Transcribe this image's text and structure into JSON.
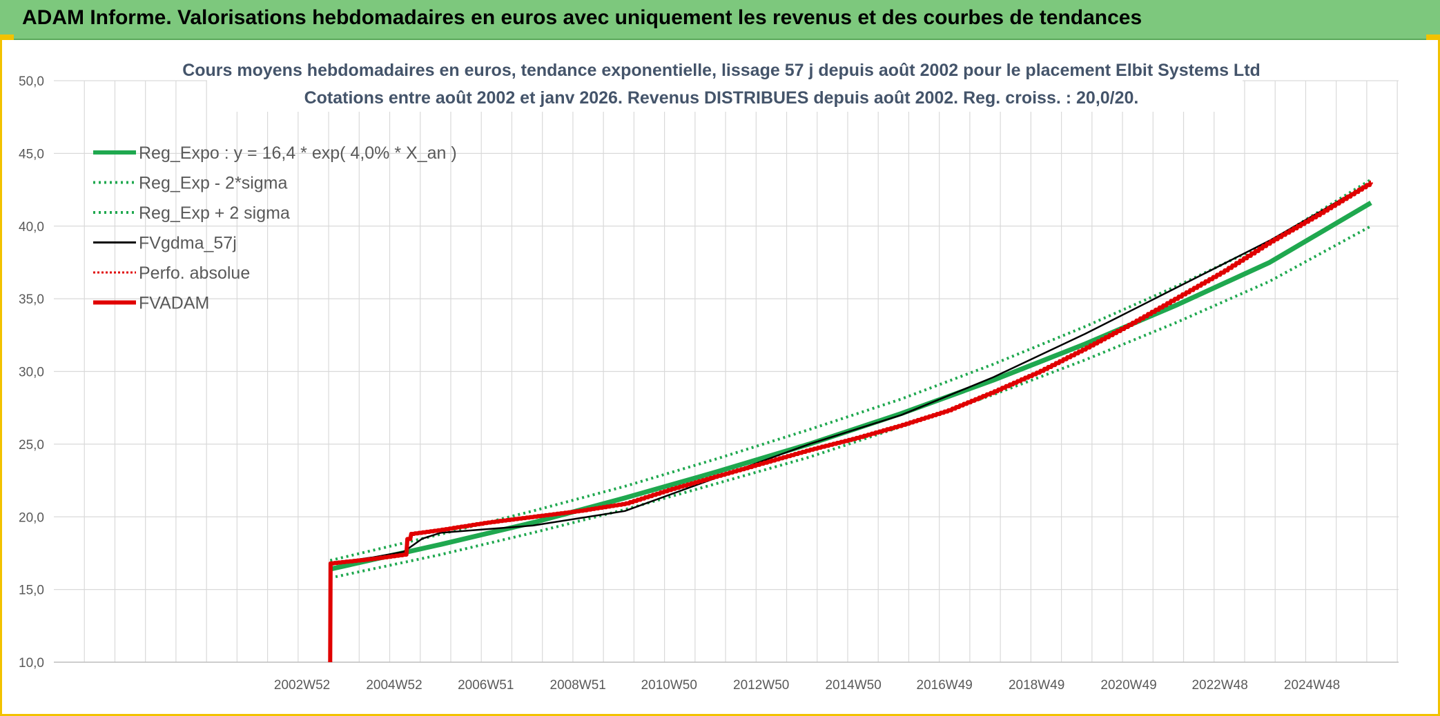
{
  "header": {
    "title": "ADAM Informe. Valorisations hebdomadaires en euros avec uniquement les revenus et des courbes de tendances"
  },
  "chart_data": {
    "type": "line",
    "title_line1": "Cours moyens hebdomadaires en euros, tendance exponentielle, lissage 57 j depuis août 2002 pour le placement Elbit Systems Ltd",
    "title_line2": "Cotations entre août 2002 et janv 2026. Revenus DISTRIBUES depuis août 2002. Reg. croiss. : 20,0/20.",
    "y_ticks": [
      "10,0",
      "15,0",
      "20,0",
      "25,0",
      "30,0",
      "35,0",
      "40,0",
      "45,0",
      "50,0"
    ],
    "ylim": [
      10,
      50
    ],
    "xlim": [
      1997.6,
      2026.8
    ],
    "x_ticks": [
      {
        "label": "2002W52",
        "x": 2002.99
      },
      {
        "label": "2004W52",
        "x": 2004.99
      },
      {
        "label": "2006W51",
        "x": 2006.98
      },
      {
        "label": "2008W51",
        "x": 2008.98
      },
      {
        "label": "2010W50",
        "x": 2010.96
      },
      {
        "label": "2012W50",
        "x": 2012.96
      },
      {
        "label": "2014W50",
        "x": 2014.96
      },
      {
        "label": "2016W49",
        "x": 2016.94
      },
      {
        "label": "2018W49",
        "x": 2018.94
      },
      {
        "label": "2020W49",
        "x": 2020.94
      },
      {
        "label": "2022W48",
        "x": 2022.92
      },
      {
        "label": "2024W48",
        "x": 2024.92
      }
    ],
    "grid": true,
    "legend_position": "top-left",
    "colors": {
      "trend": "#1fa84f",
      "gdma": "#000000",
      "perf": "#e00000",
      "fvadam": "#e00000",
      "grid": "#d9d9d9"
    },
    "series": [
      {
        "name": "Reg_Expo : y = 16,4 * exp( 4,0% *  X_an )",
        "style": "solid-thick",
        "color": "#1fa84f",
        "x": [
          2003.6,
          2006,
          2008,
          2010,
          2012,
          2014,
          2016,
          2018,
          2020,
          2022,
          2024,
          2026.2
        ],
        "y": [
          16.4,
          18.1,
          19.6,
          21.3,
          23.1,
          25.0,
          27.1,
          29.4,
          31.9,
          34.6,
          37.5,
          41.6
        ]
      },
      {
        "name": "Reg_Exp - 2*sigma",
        "style": "dotted",
        "color": "#1fa84f",
        "x": [
          2003.6,
          2006,
          2008,
          2010,
          2012,
          2014,
          2016,
          2018,
          2020,
          2022,
          2024,
          2026.2
        ],
        "y": [
          15.8,
          17.4,
          18.9,
          20.5,
          22.3,
          24.1,
          26.2,
          28.4,
          30.8,
          33.4,
          36.2,
          40.0
        ]
      },
      {
        "name": "Reg_Exp + 2 sigma",
        "style": "dotted",
        "color": "#1fa84f",
        "x": [
          2003.6,
          2006,
          2008,
          2010,
          2012,
          2014,
          2016,
          2018,
          2020,
          2022,
          2024,
          2026.2
        ],
        "y": [
          17.0,
          18.8,
          20.4,
          22.1,
          24.0,
          26.0,
          28.1,
          30.5,
          33.1,
          35.9,
          38.9,
          43.2
        ]
      },
      {
        "name": "FVgdma_57j",
        "style": "solid",
        "color": "#000000",
        "x": [
          2003.6,
          2004.5,
          2005.2,
          2005.6,
          2006,
          2008,
          2010,
          2012,
          2014,
          2016,
          2018,
          2020,
          2022,
          2024,
          2026.2
        ],
        "y": [
          16.8,
          17.2,
          17.6,
          18.5,
          18.9,
          19.4,
          20.4,
          22.7,
          25.0,
          27.0,
          29.6,
          32.6,
          35.8,
          39.0,
          43.0
        ]
      },
      {
        "name": "Perfo. absolue",
        "style": "dotted-thin",
        "color": "#e00000",
        "x": [],
        "y": []
      },
      {
        "name": "FVADAM",
        "style": "step-thick",
        "color": "#e00000",
        "x": [
          2003.6,
          2003.61,
          2004.5,
          2005.2,
          2005.3,
          2006,
          2007,
          2008,
          2009,
          2010,
          2011,
          2012,
          2013,
          2014,
          2015,
          2016,
          2017,
          2018,
          2019,
          2020,
          2021,
          2022,
          2023,
          2024,
          2025,
          2026.2
        ],
        "y": [
          10.0,
          16.8,
          17.1,
          17.4,
          18.8,
          19.1,
          19.6,
          20.0,
          20.4,
          20.9,
          21.9,
          22.8,
          23.7,
          24.6,
          25.4,
          26.3,
          27.3,
          28.6,
          30.0,
          31.6,
          33.3,
          35.1,
          36.9,
          38.9,
          40.7,
          43.0
        ]
      }
    ]
  }
}
